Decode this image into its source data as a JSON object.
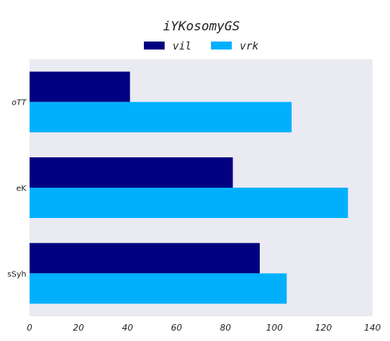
{
  "chart_data": {
    "type": "bar",
    "orientation": "horizontal",
    "title": "iYKosomyGS",
    "xlabel": "",
    "ylabel": "",
    "categories": [
      "oTT",
      "eK",
      "sSyh"
    ],
    "series": [
      {
        "name": "vil",
        "values": [
          41,
          83,
          94
        ],
        "color": "#000080"
      },
      {
        "name": "vrk",
        "values": [
          107,
          130,
          105
        ],
        "color": "#00b0ff"
      }
    ],
    "xlim": [
      0,
      140
    ],
    "xticks": [
      0,
      20,
      40,
      60,
      80,
      100,
      120,
      140
    ],
    "grid": false,
    "legend_position": "top-center",
    "background_color": "#eaeaf2"
  }
}
